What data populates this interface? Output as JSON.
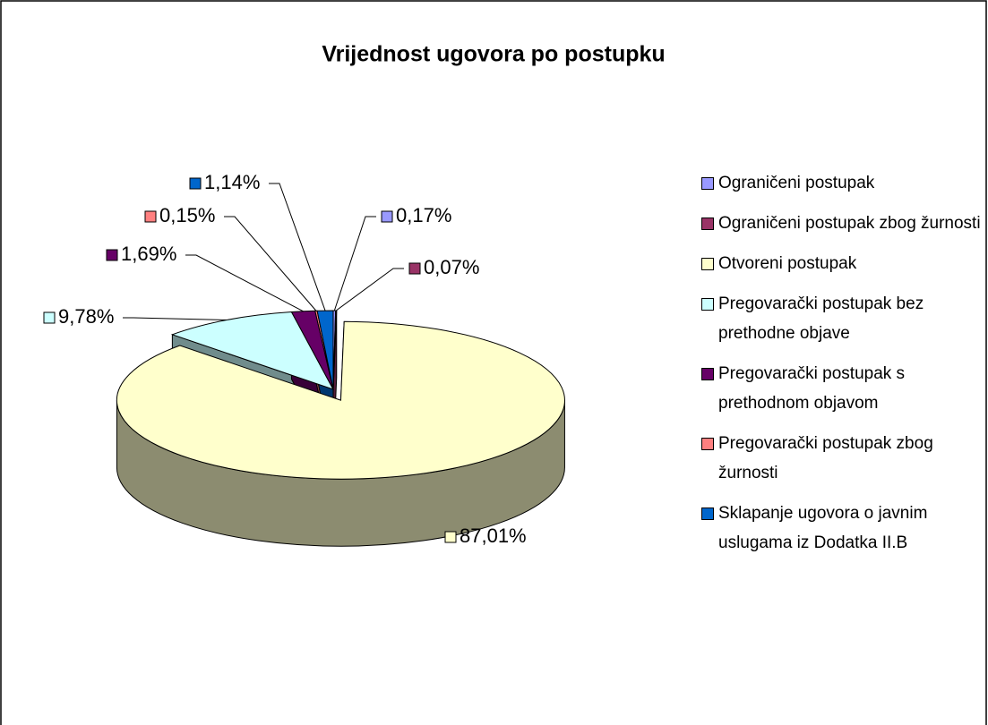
{
  "chart_data": {
    "type": "pie",
    "title": "Vrijednost ugovora po postupku",
    "categories": [
      "Ograničeni postupak",
      "Ograničeni postupak zbog žurnosti",
      "Otvoreni postupak",
      "Pregovarački postupak bez prethodne objave",
      "Pregovarački postupak s prethodnom objavom",
      "Pregovarački postupak zbog žurnosti",
      "Sklapanje ugovora o javnim uslugama iz Dodatka II.B"
    ],
    "values": [
      0.17,
      0.07,
      87.01,
      9.78,
      1.69,
      0.15,
      1.14
    ],
    "value_labels": [
      "0,17%",
      "0,07%",
      "87,01%",
      "9,78%",
      "1,69%",
      "0,15%",
      "1,14%"
    ],
    "colors": [
      "#9999ff",
      "#993366",
      "#ffffcc",
      "#ccffff",
      "#660066",
      "#ff8080",
      "#0066cc"
    ],
    "legend": "right"
  }
}
